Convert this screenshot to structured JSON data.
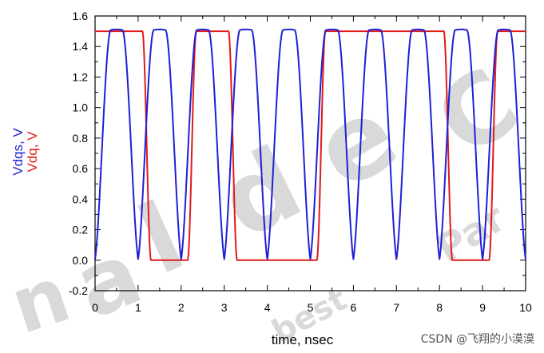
{
  "chart_data": {
    "type": "line",
    "xlabel": "time, nsec",
    "ylabel_parts": [
      {
        "text": "Vdqs, V",
        "color": "#1f1fd6"
      },
      {
        "text": "Vdq, V",
        "color": "#e01b1b"
      }
    ],
    "xlim": [
      0,
      10
    ],
    "ylim": [
      -0.2,
      1.6
    ],
    "x_ticks": [
      0,
      1,
      2,
      3,
      4,
      5,
      6,
      7,
      8,
      9,
      10
    ],
    "y_ticks": [
      "-0.2",
      "0.0",
      "0.2",
      "0.4",
      "0.6",
      "0.8",
      "1.0",
      "1.2",
      "1.4",
      "1.6"
    ],
    "grid": false,
    "series": [
      {
        "label": "Vdq",
        "color": "#e01b1b",
        "kind": "square",
        "levels": {
          "low": 0,
          "high": 1.5
        },
        "initial": 1.5,
        "transition": 0.2,
        "edges": [
          1.1,
          2.15,
          3.1,
          5.15,
          8.1,
          9.15
        ]
      },
      {
        "label": "Vdqs",
        "color": "#1f1fd6",
        "kind": "pulses",
        "initial": 0,
        "peak": 1.5,
        "width": 0.52,
        "centers": [
          0.5,
          1.5,
          2.5,
          3.5,
          4.5,
          5.5,
          6.5,
          7.5,
          8.5,
          9.5
        ]
      }
    ]
  },
  "watermark": {
    "letters": [
      "n",
      "a",
      "l",
      "d",
      "e",
      "C"
    ],
    "words": [
      "best",
      "Par"
    ]
  },
  "credit": "CSDN @飞翔的小漠漠"
}
